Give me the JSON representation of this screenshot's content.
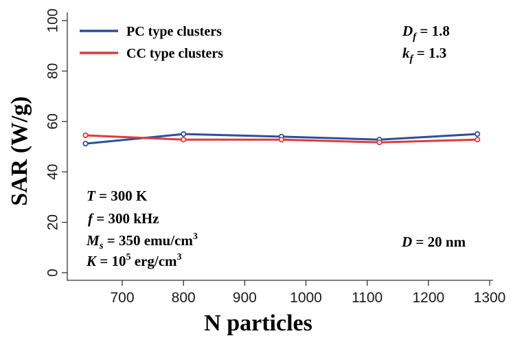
{
  "chart_data": {
    "type": "line",
    "xlabel": "N particles",
    "ylabel": "SAR (W/g)",
    "xlim": [
      600,
      1300
    ],
    "ylim": [
      -5,
      103
    ],
    "x_ticks": [
      700,
      800,
      900,
      1000,
      1100,
      1200,
      1300
    ],
    "y_ticks": [
      0,
      20,
      40,
      60,
      80,
      100
    ],
    "x_tick_labels": [
      "700",
      "800",
      "900",
      "1000",
      "1100",
      "1200",
      "1300"
    ],
    "y_tick_labels": [
      "0",
      "20",
      "40",
      "60",
      "80",
      "100"
    ],
    "grid": false,
    "legend_position": "top-left",
    "series": [
      {
        "name": "PC type clusters",
        "color": "#2a4f9e",
        "x": [
          640,
          800,
          960,
          1120,
          1280
        ],
        "y": [
          51.2,
          55.0,
          54.0,
          52.8,
          55.0
        ]
      },
      {
        "name": "CC type clusters",
        "color": "#e03a3a",
        "x": [
          640,
          800,
          960,
          1120,
          1280
        ],
        "y": [
          54.5,
          52.8,
          52.8,
          51.7,
          52.8
        ]
      }
    ],
    "annotations": {
      "df": {
        "symbol": "D",
        "sub": "f",
        "rest": " = 1.8"
      },
      "kf": {
        "symbol": "k",
        "sub": "f",
        "rest": "  = 1.3"
      },
      "T": {
        "symbol": "T",
        "rest": " = 300 K"
      },
      "f": {
        "symbol": "f",
        "rest": " = 300 kHz"
      },
      "Ms": {
        "symbol": "M",
        "sub": "s",
        "rest": " = 350 emu/cm",
        "sup": "3"
      },
      "K": {
        "symbol": "K",
        "rest1": " = 10",
        "sup1": "5",
        "rest2": " erg/cm",
        "sup2": "3"
      },
      "D": {
        "symbol": "D",
        "rest": " = 20 nm"
      }
    }
  }
}
